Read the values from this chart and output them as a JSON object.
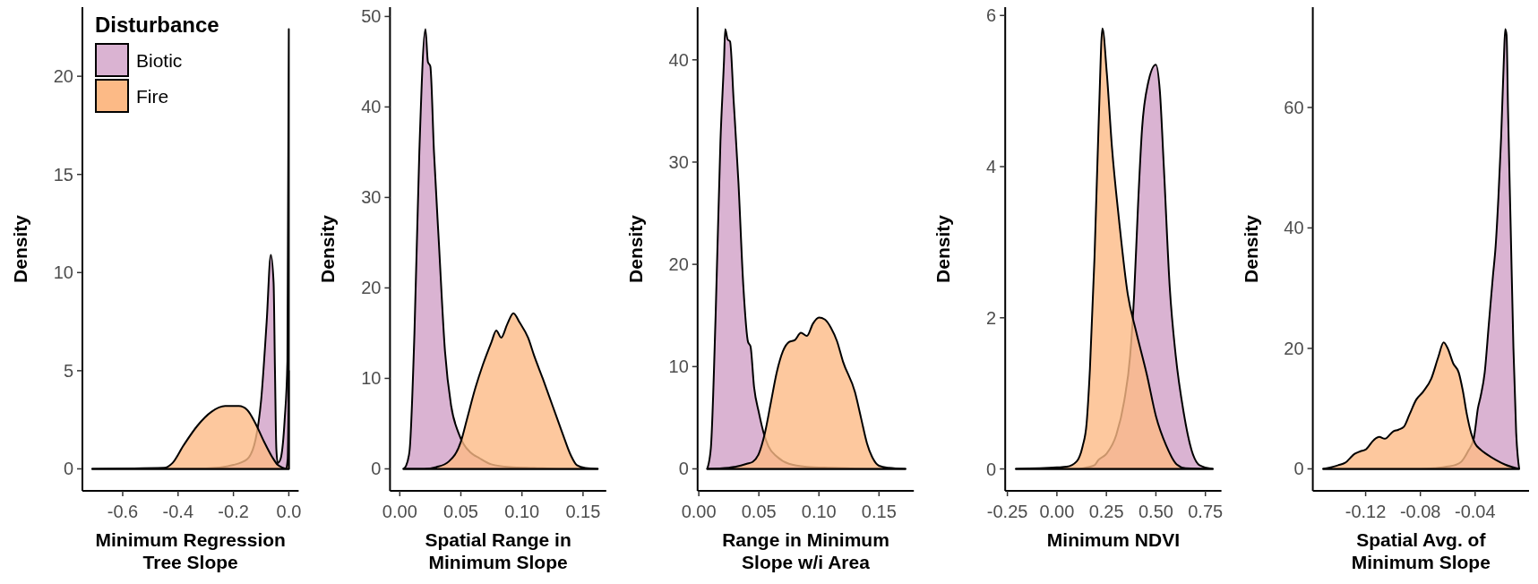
{
  "chart_data": [
    {
      "type": "area",
      "xlabel": "Minimum Regression\nTree Slope",
      "ylabel": "Density",
      "legend_title": "Disturbance",
      "legend": "top left",
      "xlim": [
        -0.7455,
        0.0355
      ],
      "xticks": [
        {
          "value": -0.6,
          "label": "-0.6"
        },
        {
          "value": -0.4,
          "label": "-0.4"
        },
        {
          "value": -0.2,
          "label": "-0.2"
        },
        {
          "value": 0,
          "label": "0.0"
        }
      ],
      "ylim": [
        -1.12,
        23.52
      ],
      "yticks": [
        0,
        5,
        10,
        15,
        20
      ],
      "series": [
        {
          "name": "Biotic",
          "color": "#dab3d2",
          "x": [
            -0.71,
            -0.3,
            -0.2,
            -0.15,
            -0.12,
            -0.1,
            -0.08,
            -0.065,
            -0.055,
            -0.05,
            -0.045,
            -0.04,
            -0.03,
            -0.015,
            -0.005,
            0
          ],
          "values": [
            0,
            0.02,
            0.2,
            0.5,
            1.5,
            3.5,
            7.5,
            10.9,
            9.5,
            5,
            1.0,
            0.3,
            0.5,
            2.5,
            5.5,
            22.4
          ]
        },
        {
          "name": "Fire",
          "color": "#fcba86",
          "x": [
            -0.71,
            -0.45,
            -0.42,
            -0.38,
            -0.33,
            -0.28,
            -0.23,
            -0.18,
            -0.15,
            -0.12,
            -0.09,
            -0.06,
            -0.04,
            -0.02,
            -0.01,
            -0.004,
            0
          ],
          "values": [
            0,
            0.05,
            0.3,
            1.2,
            2.2,
            2.9,
            3.2,
            3.2,
            3.0,
            2.3,
            1.4,
            0.6,
            0.2,
            0.05,
            0,
            0.5,
            5
          ]
        }
      ]
    },
    {
      "type": "area",
      "xlabel": "Spatial Range in\nMinimum Slope",
      "ylabel": "Density",
      "xlim": [
        -0.008,
        0.169
      ],
      "xticks": [
        {
          "value": 0,
          "label": "0.00"
        },
        0.05,
        {
          "value": 0.1,
          "label": "0.10"
        },
        0.15
      ],
      "ylim": [
        -2.43,
        51.03
      ],
      "yticks": [
        0,
        10,
        20,
        30,
        40,
        50
      ],
      "series": [
        {
          "color": "#dab3d2",
          "x": [
            0.003,
            0.005,
            0.008,
            0.012,
            0.016,
            0.021,
            0.023,
            0.025,
            0.028,
            0.032,
            0.037,
            0.042,
            0.048,
            0.052,
            0.058,
            0.065,
            0.075,
            0.09,
            0.11,
            0.13,
            0.162
          ],
          "values": [
            0,
            0.3,
            2,
            15,
            35,
            48.6,
            45,
            44.5,
            35,
            25,
            13,
            7,
            4,
            2.8,
            1.8,
            1.2,
            0.5,
            0.2,
            0.1,
            0,
            0
          ]
        },
        {
          "color": "#fcba86",
          "x": [
            0.003,
            0.02,
            0.03,
            0.04,
            0.05,
            0.055,
            0.062,
            0.068,
            0.075,
            0.079,
            0.083,
            0.088,
            0.093,
            0.098,
            0.105,
            0.11,
            0.117,
            0.125,
            0.133,
            0.14,
            0.145,
            0.152,
            0.162
          ],
          "values": [
            0,
            0,
            0.2,
            0.8,
            3,
            5.5,
            9,
            11.5,
            14,
            15.3,
            14.5,
            16,
            17.2,
            16.2,
            14.5,
            12.5,
            10,
            7,
            4,
            1.5,
            0.4,
            0.1,
            0
          ]
        }
      ]
    },
    {
      "type": "area",
      "xlabel": "Range in Minimum\nSlope w/i Area",
      "ylabel": "Density",
      "xlim": [
        -0.001,
        0.179
      ],
      "xticks": [
        {
          "value": 0,
          "label": "0.00"
        },
        0.05,
        {
          "value": 0.1,
          "label": "0.10"
        },
        0.15
      ],
      "ylim": [
        -2.15,
        45.15
      ],
      "yticks": [
        0,
        10,
        20,
        30,
        40
      ],
      "series": [
        {
          "color": "#dab3d2",
          "x": [
            0.007,
            0.01,
            0.014,
            0.018,
            0.021,
            0.022,
            0.024,
            0.026,
            0.029,
            0.033,
            0.037,
            0.041,
            0.043,
            0.046,
            0.05,
            0.054,
            0.058,
            0.065,
            0.075,
            0.09,
            0.11,
            0.14,
            0.172
          ],
          "values": [
            0,
            2,
            15,
            32,
            40,
            43,
            42,
            41.8,
            36,
            28,
            18,
            12.4,
            12,
            8,
            5.5,
            3.5,
            2.2,
            1.2,
            0.5,
            0.2,
            0.1,
            0,
            0
          ]
        },
        {
          "color": "#fcba86",
          "x": [
            0.007,
            0.025,
            0.03,
            0.04,
            0.045,
            0.05,
            0.055,
            0.06,
            0.065,
            0.07,
            0.075,
            0.08,
            0.085,
            0.09,
            0.095,
            0.1,
            0.105,
            0.11,
            0.115,
            0.12,
            0.13,
            0.135,
            0.14,
            0.145,
            0.15,
            0.158,
            0.172
          ],
          "values": [
            0,
            0.1,
            0.2,
            0.5,
            0.7,
            1.5,
            3.5,
            6.5,
            9.5,
            11.5,
            12.4,
            12.6,
            13.3,
            13.0,
            14.2,
            14.8,
            14.6,
            13.8,
            12.5,
            10.5,
            7.5,
            5,
            2.5,
            1.0,
            0.3,
            0.1,
            0
          ]
        }
      ]
    },
    {
      "type": "area",
      "xlabel": "Minimum NDVI",
      "ylabel": "Density",
      "xlim": [
        -0.261,
        0.831
      ],
      "xticks": [
        -0.25,
        {
          "value": 0,
          "label": "0.00"
        },
        0.25,
        {
          "value": 0.5,
          "label": "0.50"
        },
        0.75
      ],
      "ylim": [
        -0.29,
        6.11
      ],
      "yticks": [
        0,
        2,
        4,
        6
      ],
      "series": [
        {
          "color": "#dab3d2",
          "x": [
            -0.207,
            0.1,
            0.15,
            0.19,
            0.21,
            0.25,
            0.3,
            0.34,
            0.37,
            0.39,
            0.41,
            0.43,
            0.46,
            0.5,
            0.52,
            0.54,
            0.57,
            0.6,
            0.64,
            0.68,
            0.72,
            0.787
          ],
          "values": [
            0,
            0,
            0.02,
            0.05,
            0.12,
            0.2,
            0.45,
            0.9,
            1.5,
            2.3,
            3.5,
            4.5,
            5.1,
            5.35,
            5.0,
            4.0,
            2.4,
            1.5,
            0.75,
            0.25,
            0.05,
            0
          ]
        },
        {
          "color": "#fcba86",
          "x": [
            -0.207,
            0,
            0.05,
            0.1,
            0.13,
            0.15,
            0.167,
            0.19,
            0.213,
            0.23,
            0.252,
            0.278,
            0.314,
            0.358,
            0.4,
            0.455,
            0.5,
            0.552,
            0.605,
            0.65,
            0.787
          ],
          "values": [
            0,
            0.02,
            0.03,
            0.1,
            0.3,
            0.6,
            1.33,
            2.8,
            4.75,
            5.83,
            5.24,
            4.26,
            3.29,
            2.31,
            1.82,
            1.24,
            0.7,
            0.31,
            0.06,
            0.01,
            0
          ]
        }
      ]
    },
    {
      "type": "area",
      "xlabel": "Spatial Avg. of\nMinimum Slope",
      "ylabel": "Density",
      "xlim": [
        -0.1586,
        -0.0006
      ],
      "xticks": [
        -0.12,
        {
          "value": -0.08,
          "label": "-0.08"
        },
        -0.04
      ],
      "ylim": [
        -3.65,
        76.65
      ],
      "yticks": [
        0,
        20,
        40,
        60
      ],
      "series": [
        {
          "color": "#dab3d2",
          "x": [
            -0.151,
            -0.08,
            -0.07,
            -0.065,
            -0.06,
            -0.055,
            -0.05,
            -0.045,
            -0.041,
            -0.04,
            -0.038,
            -0.036,
            -0.033,
            -0.03,
            -0.027,
            -0.025,
            -0.023,
            -0.021,
            -0.019,
            -0.018,
            -0.017,
            -0.016,
            -0.014,
            -0.012,
            -0.01,
            -0.0078
          ],
          "values": [
            0,
            0,
            0.1,
            0.2,
            0.4,
            0.6,
            1.2,
            3.0,
            5,
            6.5,
            10,
            12,
            16,
            24,
            32,
            37,
            45,
            55,
            68,
            73,
            72,
            60,
            40,
            20,
            6,
            0
          ]
        },
        {
          "color": "#fcba86",
          "x": [
            -0.151,
            -0.14,
            -0.135,
            -0.128,
            -0.124,
            -0.12,
            -0.114,
            -0.11,
            -0.106,
            -0.1,
            -0.096,
            -0.092,
            -0.088,
            -0.083,
            -0.078,
            -0.072,
            -0.067,
            -0.063,
            -0.06,
            -0.056,
            -0.052,
            -0.049,
            -0.046,
            -0.043,
            -0.04,
            -0.036,
            -0.032,
            -0.025,
            -0.018,
            -0.0078
          ],
          "values": [
            0,
            0.6,
            1.0,
            2.5,
            2.9,
            3.2,
            4.8,
            5.3,
            5.0,
            6.2,
            6.5,
            7.0,
            9,
            11.5,
            12.8,
            15,
            18.5,
            21.0,
            20.0,
            17.5,
            16.0,
            13,
            9,
            6.0,
            4.2,
            3.2,
            2.5,
            1.5,
            0.7,
            0
          ]
        }
      ]
    }
  ]
}
